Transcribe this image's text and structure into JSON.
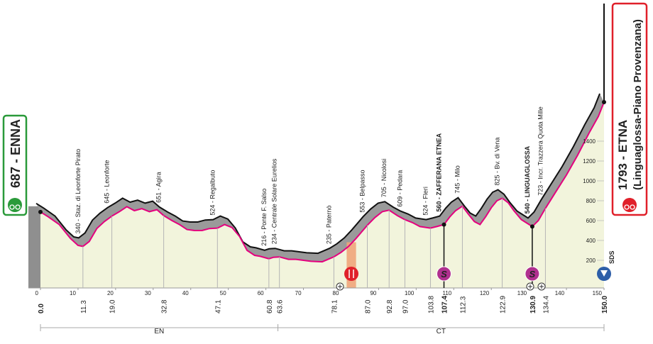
{
  "chart_data": {
    "type": "profile",
    "xlim": [
      0,
      150
    ],
    "ylim": [
      0,
      1800
    ],
    "xticks": [
      0,
      10,
      20,
      30,
      40,
      50,
      60,
      70,
      80,
      90,
      100,
      110,
      120,
      130,
      140,
      150
    ],
    "yticks": [
      200,
      400,
      600,
      800,
      1000,
      1200,
      1400
    ],
    "color": "#e4007e",
    "x": [
      0,
      2,
      5,
      8,
      10,
      11.3,
      13,
      15,
      17,
      19,
      21,
      23,
      25,
      27,
      29,
      31,
      32.8,
      35,
      37,
      39,
      41,
      43,
      45,
      47.1,
      49,
      51,
      53,
      55,
      57,
      58.5,
      60.8,
      62,
      63.6,
      66,
      68,
      70,
      72,
      75,
      78.1,
      80,
      82,
      84,
      87,
      89,
      91,
      92.8,
      95,
      97,
      99,
      101,
      103.8,
      105.5,
      107.4,
      109,
      110.5,
      112.3,
      114,
      115.5,
      117,
      118.5,
      120,
      121.5,
      122.9,
      124.5,
      126,
      128,
      130.9,
      132.5,
      134.4,
      137,
      140,
      143,
      146,
      148.5,
      150
    ],
    "values": [
      687,
      640,
      560,
      420,
      350,
      340,
      390,
      520,
      590,
      645,
      690,
      740,
      700,
      720,
      690,
      710,
      651,
      600,
      560,
      510,
      500,
      500,
      520,
      524,
      560,
      530,
      440,
      300,
      250,
      240,
      216,
      230,
      234,
      210,
      210,
      200,
      190,
      185,
      235,
      280,
      340,
      420,
      553,
      630,
      690,
      705,
      650,
      609,
      580,
      540,
      524,
      540,
      560,
      640,
      700,
      745,
      660,
      590,
      560,
      640,
      730,
      800,
      825,
      780,
      700,
      610,
      540,
      600,
      723,
      880,
      1060,
      1260,
      1480,
      1650,
      1793
    ],
    "start": {
      "label": "687 - ENNA",
      "km": {
        "value": 0,
        "label": "0.0"
      }
    },
    "finish": {
      "label": "1793 - ETNA",
      "sublabel": "(Linguaglossa-Piano Provenzana)",
      "km": {
        "value": 150,
        "label": "150.0"
      },
      "marker": "SDS"
    },
    "waypoints": [
      {
        "km": 11.3,
        "label": "340 - Staz. di Leonforte Pirato"
      },
      {
        "km": {
          "value": 19,
          "label": "19.0"
        },
        "label": "645 - Leonforte"
      },
      {
        "km": 32.8,
        "label": "651 - Agira"
      },
      {
        "km": 47.1,
        "label": "524 - Regalbuto"
      },
      {
        "km": 60.8,
        "label": "216 - Ponte F. Salso"
      },
      {
        "km": 63.6,
        "label": "234 - Centrale Solare Eurelios"
      },
      {
        "km": 78.1,
        "label": "235 - Paternò"
      },
      {
        "km": {
          "value": 87,
          "label": "87.0"
        },
        "label": "553 - Belpasso"
      },
      {
        "km": 92.8,
        "label": "705 - Nicolosi"
      },
      {
        "km": {
          "value": 97,
          "label": "97.0"
        },
        "label": "609 - Pedara"
      },
      {
        "km": 103.8,
        "label": "524 - Fleri"
      },
      {
        "km": 107.4,
        "label": "560 - ZAFFERANA ETNEA",
        "sprint": true
      },
      {
        "km": 112.3,
        "label": "745 - Milo"
      },
      {
        "km": 122.9,
        "label": "825 - Bv. di Vena"
      },
      {
        "km": 130.9,
        "label": "540 - LINGUAGLOSSA",
        "sprint": true
      },
      {
        "km": 134.4,
        "label": "723 - Incr. Trazzera Quota Mille"
      }
    ],
    "sprint_label": "S",
    "feed_zone": [
      81.5,
      84
    ],
    "provinces": [
      {
        "name": "EN",
        "from": 0,
        "to": 63.2
      },
      {
        "name": "CT",
        "from": 63.2,
        "to": 150
      }
    ]
  }
}
